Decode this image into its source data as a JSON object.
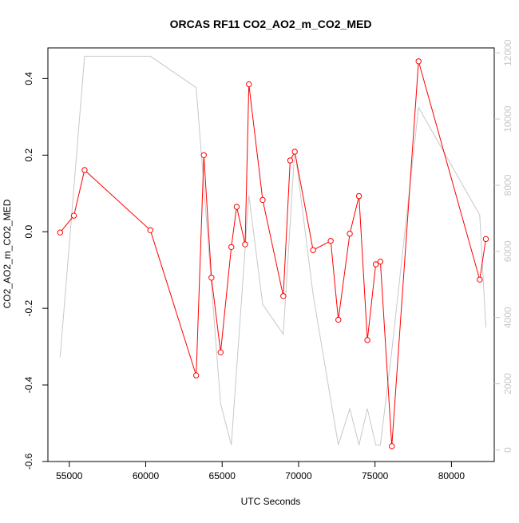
{
  "chart_data": {
    "type": "line",
    "title": "ORCAS RF11 CO2_AO2_m_CO2_MED",
    "xlabel": "UTC Seconds",
    "ylabel": "CO2_AO2_m_CO2_MED",
    "xlim": [
      53600,
      82800
    ],
    "ylim": [
      -0.6,
      0.48
    ],
    "y2lim": [
      -350,
      12150
    ],
    "x_ticks": [
      55000,
      60000,
      65000,
      70000,
      75000,
      80000
    ],
    "y_ticks": [
      -0.6,
      -0.4,
      -0.2,
      0.0,
      0.2,
      0.4
    ],
    "y2_ticks": [
      0,
      2000,
      4000,
      6000,
      8000,
      10000,
      12000
    ],
    "grid": false,
    "series": [
      {
        "axis": "left",
        "color": "#ff0000",
        "marker": "open-circle",
        "x": [
          54400,
          55300,
          56000,
          60300,
          63300,
          63800,
          64300,
          64900,
          65600,
          65950,
          66500,
          66750,
          67650,
          69000,
          69450,
          69750,
          70950,
          72100,
          72600,
          73350,
          73950,
          74500,
          75050,
          75350,
          76100,
          77850,
          81850,
          82250
        ],
        "y": [
          -0.002,
          0.042,
          0.161,
          0.004,
          -0.375,
          0.2,
          -0.12,
          -0.315,
          -0.04,
          0.065,
          -0.033,
          0.385,
          0.083,
          -0.168,
          0.186,
          0.209,
          -0.048,
          -0.024,
          -0.23,
          -0.005,
          0.093,
          -0.283,
          -0.085,
          -0.078,
          -0.56,
          0.445,
          -0.125,
          -0.019
        ]
      },
      {
        "axis": "right",
        "color": "#c8c8c8",
        "marker": "none",
        "x": [
          54400,
          56000,
          60300,
          63300,
          64900,
          65600,
          66750,
          67650,
          69000,
          69750,
          70950,
          72600,
          73350,
          73950,
          74500,
          75050,
          75350,
          76100,
          77850,
          81850,
          82250
        ],
        "y": [
          2800,
          11900,
          11900,
          10950,
          1400,
          150,
          7700,
          4400,
          3500,
          9100,
          4700,
          150,
          1250,
          150,
          1250,
          150,
          150,
          3000,
          10350,
          7100,
          3700
        ]
      }
    ]
  }
}
